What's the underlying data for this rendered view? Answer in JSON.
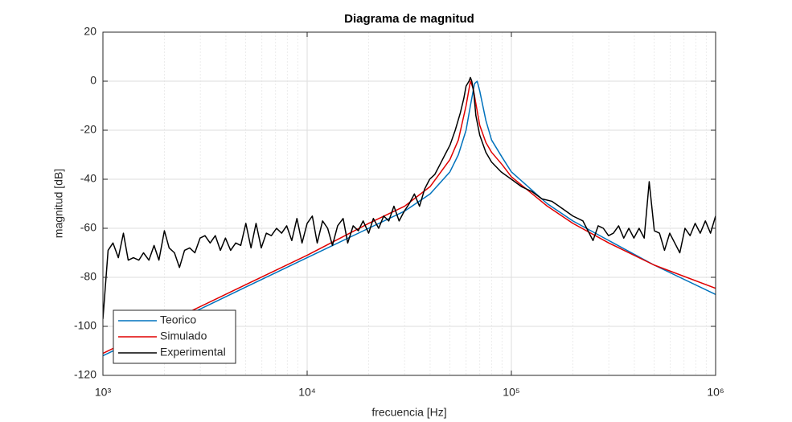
{
  "chart_data": {
    "type": "line",
    "title": "Diagrama de magnitud",
    "x_label": "frecuencia [Hz]",
    "y_label": "magnitud [dB]",
    "x_scale": "log",
    "xlim": [
      1000,
      1000000
    ],
    "xticks": [
      {
        "value": 1000,
        "label": "10³"
      },
      {
        "value": 10000,
        "label": "10⁴"
      },
      {
        "value": 100000,
        "label": "10⁵"
      },
      {
        "value": 1000000,
        "label": "10⁶"
      }
    ],
    "ylim": [
      -120,
      20
    ],
    "yticks": [
      -120,
      -100,
      -80,
      -60,
      -40,
      -20,
      0,
      20
    ],
    "grid": true,
    "minor_grid": true,
    "legend": "southwest",
    "series": [
      {
        "name": "Teorico",
        "color": "#0072bd",
        "x": [
          1000,
          2000,
          5000,
          10000,
          20000,
          30000,
          40000,
          50000,
          55000,
          60000,
          63000,
          66000,
          68000,
          70000,
          75000,
          80000,
          90000,
          100000,
          150000,
          200000,
          300000,
          500000,
          1000000
        ],
        "values": [
          -112,
          -100,
          -84,
          -72,
          -60,
          -53,
          -46,
          -37,
          -30,
          -20,
          -10,
          -1,
          0,
          -4,
          -16,
          -24,
          -31,
          -37,
          -50,
          -57,
          -65,
          -75,
          -87
        ]
      },
      {
        "name": "Simulado",
        "color": "#e00000",
        "x": [
          1000,
          2000,
          5000,
          10000,
          20000,
          30000,
          40000,
          50000,
          55000,
          60000,
          63000,
          65000,
          70000,
          75000,
          80000,
          90000,
          100000,
          150000,
          200000,
          300000,
          500000,
          1000000
        ],
        "values": [
          -111,
          -99,
          -83,
          -71,
          -58,
          -51,
          -43,
          -32,
          -24,
          -10,
          0,
          -3,
          -18,
          -25,
          -29,
          -34,
          -39,
          -51,
          -58,
          -66,
          -75,
          -84.5
        ]
      },
      {
        "name": "Experimental",
        "color": "#000000",
        "x": [
          1000,
          1060,
          1120,
          1190,
          1260,
          1330,
          1410,
          1500,
          1580,
          1680,
          1780,
          1880,
          2000,
          2110,
          2240,
          2370,
          2510,
          2660,
          2820,
          2990,
          3160,
          3350,
          3550,
          3760,
          3980,
          4220,
          4470,
          4730,
          5010,
          5310,
          5620,
          5960,
          6310,
          6680,
          7080,
          7500,
          7940,
          8410,
          8910,
          9440,
          10000,
          10600,
          11200,
          11900,
          12600,
          13300,
          14100,
          15000,
          15800,
          16800,
          17800,
          18800,
          20000,
          21100,
          22400,
          23700,
          25100,
          26600,
          28200,
          29900,
          31600,
          33500,
          35500,
          37600,
          39800,
          42200,
          44700,
          47300,
          50100,
          53100,
          56200,
          58500,
          60000,
          62000,
          63000,
          64000,
          65500,
          67000,
          70000,
          75000,
          80000,
          89100,
          100000,
          112000,
          126000,
          141000,
          158000,
          178000,
          200000,
          224000,
          251000,
          266000,
          282000,
          299000,
          316000,
          335000,
          355000,
          376000,
          398000,
          422000,
          447000,
          473000,
          501000,
          531000,
          562000,
          596000,
          631000,
          668000,
          708000,
          750000,
          794000,
          841000,
          891000,
          944000,
          1000000
        ],
        "values": [
          -97,
          -69,
          -66,
          -72,
          -62,
          -73,
          -72,
          -73,
          -70,
          -73,
          -67,
          -73,
          -61,
          -68,
          -70,
          -76,
          -69,
          -68,
          -70,
          -64,
          -63,
          -66,
          -63,
          -69,
          -64,
          -69,
          -66,
          -67,
          -58,
          -68,
          -58,
          -68,
          -62,
          -63,
          -60,
          -62,
          -59,
          -65,
          -56,
          -66,
          -58,
          -55,
          -66,
          -57,
          -60,
          -67,
          -59,
          -56,
          -66,
          -59,
          -61,
          -57,
          -62,
          -56,
          -60,
          -55,
          -57,
          -51,
          -57,
          -53,
          -50,
          -46,
          -51,
          -44,
          -40,
          -38,
          -34,
          -30,
          -26,
          -20,
          -13,
          -7,
          -2,
          0,
          1.5,
          0,
          -5,
          -14,
          -22,
          -29,
          -33,
          -37,
          -40,
          -43,
          -45,
          -48,
          -49,
          -52,
          -55,
          -57,
          -65,
          -59,
          -60,
          -63,
          -62,
          -59,
          -64,
          -60,
          -64,
          -60,
          -64,
          -41,
          -61,
          -62,
          -69,
          -62,
          -66,
          -70,
          -60,
          -63,
          -58,
          -62,
          -57,
          -62,
          -55
        ]
      }
    ]
  }
}
